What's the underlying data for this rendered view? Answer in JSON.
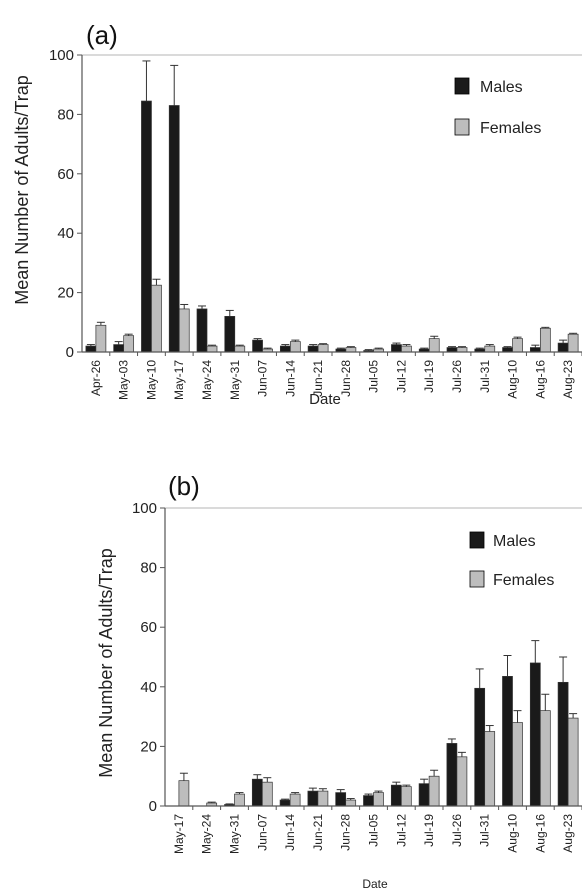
{
  "chart_data": [
    {
      "type": "bar",
      "panel_label": "(a)",
      "xlabel": "Date",
      "ylabel": "Mean Number of Adults/Trap",
      "ylim": [
        0,
        100
      ],
      "yticks": [
        0,
        20,
        40,
        60,
        80,
        100
      ],
      "grid": false,
      "legend_position": "top-right",
      "categories": [
        "Apr-26",
        "May-03",
        "May-10",
        "May-17",
        "May-24",
        "May-31",
        "Jun-07",
        "Jun-14",
        "Jun-21",
        "Jun-28",
        "Jul-05",
        "Jul-12",
        "Jul-19",
        "Jul-26",
        "Jul-31",
        "Aug-10",
        "Aug-16",
        "Aug-23"
      ],
      "series": [
        {
          "name": "Males",
          "color": "#1a1a1a",
          "values": [
            2,
            2.5,
            84.5,
            83,
            14.5,
            12,
            4,
            2,
            2,
            1,
            0.5,
            2.5,
            1,
            1.5,
            1,
            1.5,
            1.5,
            3
          ],
          "errors": [
            0.5,
            1,
            13.5,
            13.5,
            1,
            2,
            0.5,
            0.5,
            0.5,
            0.3,
            0.3,
            0.5,
            0.3,
            0.3,
            0.3,
            0.3,
            0.8,
            1
          ]
        },
        {
          "name": "Females",
          "color": "#bdbdbd",
          "values": [
            9,
            5.5,
            22.5,
            14.5,
            2,
            2,
            1,
            3.5,
            2.5,
            1.5,
            1,
            2,
            4.5,
            1.5,
            2,
            4.5,
            8,
            6
          ],
          "errors": [
            1,
            0.5,
            2,
            1.5,
            0.3,
            0.3,
            0.3,
            0.5,
            0.3,
            0.3,
            0.3,
            0.5,
            0.8,
            0.3,
            0.5,
            0.5,
            0.3,
            0.3
          ]
        }
      ]
    },
    {
      "type": "bar",
      "panel_label": "(b)",
      "xlabel": "Date",
      "ylabel": "Mean Number of Adults/Trap",
      "ylim": [
        0,
        100
      ],
      "yticks": [
        0,
        20,
        40,
        60,
        80,
        100
      ],
      "grid": false,
      "legend_position": "top-right",
      "categories": [
        "May-17",
        "May-24",
        "May-31",
        "Jun-07",
        "Jun-14",
        "Jun-21",
        "Jun-28",
        "Jul-05",
        "Jul-12",
        "Jul-19",
        "Jul-26",
        "Jul-31",
        "Aug-10",
        "Aug-16",
        "Aug-23"
      ],
      "series": [
        {
          "name": "Males",
          "color": "#1a1a1a",
          "values": [
            0,
            0,
            0.5,
            9,
            2,
            5,
            4.5,
            3.5,
            7,
            7.5,
            21,
            39.5,
            43.5,
            48,
            41.5
          ],
          "errors": [
            0,
            0,
            0.2,
            1.5,
            0.3,
            1,
            1,
            0.5,
            1,
            1.5,
            1.5,
            6.5,
            7,
            7.5,
            8.5
          ]
        },
        {
          "name": "Females",
          "color": "#bdbdbd",
          "values": [
            8.5,
            1,
            4,
            8,
            4,
            5,
            2,
            4.5,
            6.5,
            10,
            16.5,
            25,
            28,
            32,
            29.5
          ],
          "errors": [
            2.5,
            0.3,
            0.5,
            1.5,
            0.5,
            0.8,
            0.5,
            0.5,
            0.5,
            2,
            1.5,
            2,
            4,
            5.5,
            1.5
          ]
        }
      ]
    }
  ]
}
